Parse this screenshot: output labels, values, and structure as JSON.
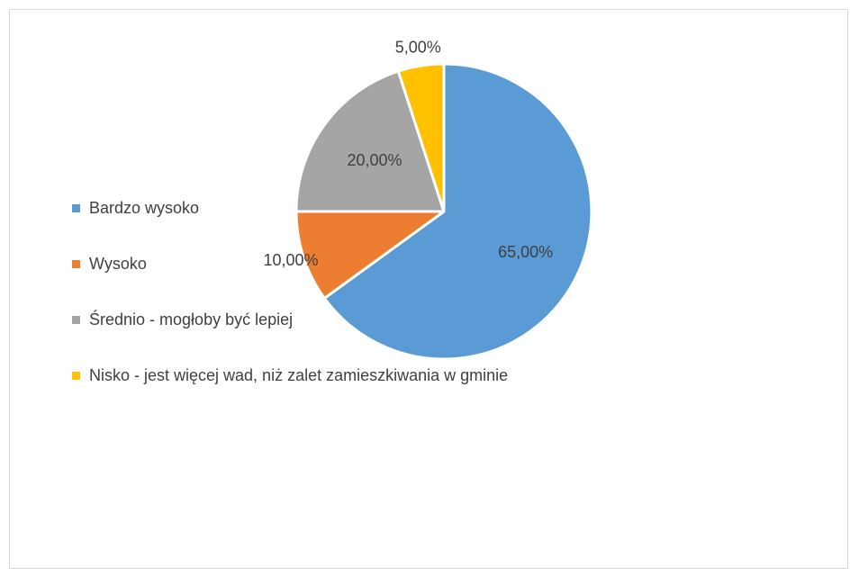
{
  "chart_data": {
    "type": "pie",
    "categories": [
      "Bardzo wysoko",
      "Wysoko",
      "Średnio - mogłoby być lepiej",
      "Nisko - jest więcej wad, niż zalet zamieszkiwania w gminie"
    ],
    "values": [
      65,
      10,
      20,
      5
    ],
    "data_labels": [
      "65,00%",
      "10,00%",
      "20,00%",
      "5,00%"
    ],
    "colors": [
      "#5b9bd5",
      "#ed7d31",
      "#a5a5a5",
      "#ffc000"
    ],
    "legend_position": "left",
    "start_angle_deg": 0,
    "direction": "clockwise"
  }
}
